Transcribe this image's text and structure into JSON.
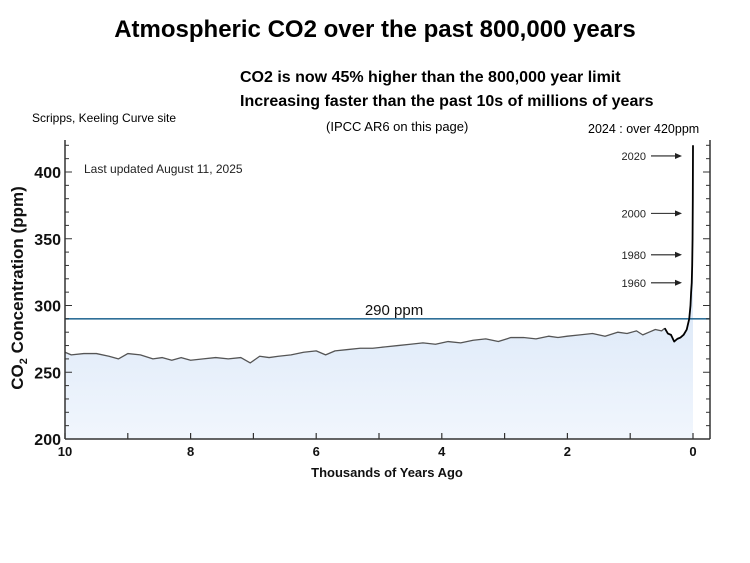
{
  "header": {
    "title": "Atmospheric CO2 over the past 800,000 years",
    "subtitle_line1": "CO2 is now  45% higher than the 800,000 year limit",
    "subtitle_line2": "Increasing faster than the past 10s of millions of years",
    "subtitle_line3": "(IPCC AR6 on this page)",
    "source": "Scripps, Keeling Curve site",
    "latest_note": "2024 : over 420ppm"
  },
  "chart_data": {
    "type": "area",
    "title": "",
    "xlabel": "Thousands of Years Ago",
    "ylabel_prefix": "CO",
    "ylabel_subscript": "2",
    "ylabel_suffix": " Concentration (ppm)",
    "xlim": [
      10,
      0
    ],
    "ylim": [
      200,
      425
    ],
    "x_ticks": [
      10,
      8,
      6,
      4,
      2,
      0
    ],
    "x_tick_labels": [
      "10",
      "8",
      "6",
      "4",
      "2",
      "0"
    ],
    "x_minor_ticks": [
      9,
      7,
      5,
      3,
      1
    ],
    "y_ticks": [
      200,
      250,
      300,
      350,
      400
    ],
    "y_tick_labels": [
      "200",
      "250",
      "300",
      "350",
      "400"
    ],
    "y_minor_step": 10,
    "grid": false,
    "annotation": "Last updated August 11, 2025",
    "reference_line": {
      "value": 290,
      "label": "290 ppm",
      "color": "#2f6f98"
    },
    "year_markers": [
      {
        "label": "2020",
        "ppm": 412
      },
      {
        "label": "2000",
        "ppm": 369
      },
      {
        "label": "1980",
        "ppm": 338
      },
      {
        "label": "1960",
        "ppm": 317
      }
    ],
    "colors": {
      "line": "#555555",
      "line_recent": "#000000",
      "fill_top": "#c6daf2",
      "fill_bottom": "#f1f6fd",
      "axis": "#333333"
    },
    "series": [
      {
        "name": "CO2 (ppm)",
        "x": [
          10.0,
          9.9,
          9.7,
          9.5,
          9.3,
          9.15,
          9.0,
          8.8,
          8.6,
          8.45,
          8.3,
          8.15,
          8.0,
          7.8,
          7.6,
          7.4,
          7.2,
          7.05,
          6.9,
          6.75,
          6.6,
          6.4,
          6.2,
          6.0,
          5.85,
          5.7,
          5.5,
          5.3,
          5.1,
          4.9,
          4.7,
          4.5,
          4.3,
          4.1,
          3.9,
          3.7,
          3.5,
          3.3,
          3.1,
          2.9,
          2.7,
          2.5,
          2.3,
          2.15,
          2.0,
          1.8,
          1.6,
          1.4,
          1.2,
          1.05,
          0.9,
          0.8,
          0.7,
          0.6,
          0.5,
          0.45,
          0.4,
          0.35,
          0.3,
          0.25,
          0.2,
          0.15,
          0.1,
          0.06,
          0.04,
          0.03,
          0.02,
          0.013,
          0.007,
          0.003,
          0.0
        ],
        "y": [
          265,
          263,
          264,
          264,
          262,
          260,
          264,
          263,
          260,
          261,
          259,
          261,
          259,
          260,
          261,
          260,
          261,
          257,
          262,
          261,
          262,
          263,
          265,
          266,
          263,
          266,
          267,
          268,
          268,
          269,
          270,
          271,
          272,
          271,
          273,
          272,
          274,
          275,
          273,
          276,
          276,
          275,
          277,
          276,
          277,
          278,
          279,
          277,
          280,
          279,
          281,
          278,
          280,
          282,
          281,
          283,
          279,
          278,
          273,
          275,
          276,
          278,
          282,
          290,
          300,
          310,
          317,
          330,
          350,
          380,
          420
        ]
      }
    ]
  }
}
